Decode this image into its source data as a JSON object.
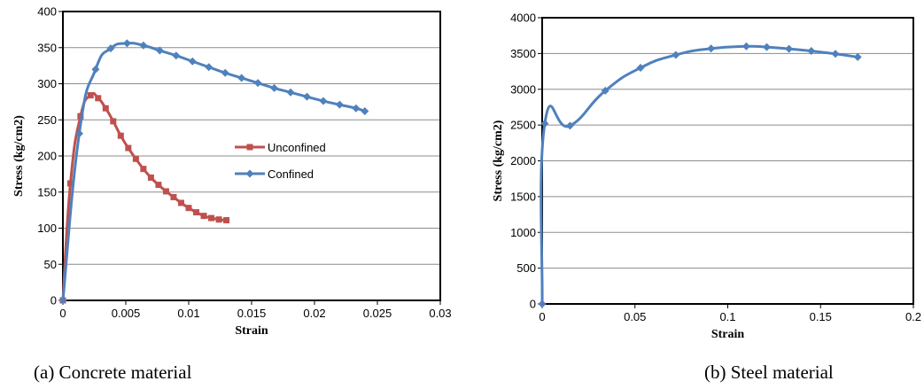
{
  "chart_data": [
    {
      "type": "line",
      "caption": "(a) Concrete material",
      "xlabel": "Strain",
      "ylabel": "Stress (kg/cm2)",
      "xlim": [
        0,
        0.03
      ],
      "ylim": [
        0,
        400
      ],
      "x_ticks": [
        0,
        0.005,
        0.01,
        0.015,
        0.02,
        0.025,
        0.03
      ],
      "x_tick_labels": [
        "0",
        "0.005",
        "0.01",
        "0.015",
        "0.02",
        "0.025",
        "0.03"
      ],
      "y_ticks": [
        0,
        50,
        100,
        150,
        200,
        250,
        300,
        350,
        400
      ],
      "y_tick_labels": [
        "0",
        "50",
        "100",
        "150",
        "200",
        "250",
        "300",
        "350",
        "400"
      ],
      "grid": "horizontal",
      "legend": "center-right",
      "series": [
        {
          "name": "Unconfined",
          "color": "#c0504d",
          "marker": "square",
          "x": [
            0,
            0.0006,
            0.0014,
            0.0022,
            0.0028,
            0.0034,
            0.004,
            0.0046,
            0.0052,
            0.0058,
            0.0064,
            0.007,
            0.0076,
            0.0082,
            0.0088,
            0.0094,
            0.01,
            0.0106,
            0.0112,
            0.0118,
            0.0124,
            0.013
          ],
          "y": [
            0,
            162,
            255,
            284,
            280,
            266,
            248,
            228,
            211,
            196,
            182,
            170,
            160,
            151,
            143,
            135,
            128,
            122,
            117,
            114,
            112,
            111
          ]
        },
        {
          "name": "Confined",
          "color": "#4f81bd",
          "marker": "diamond",
          "x": [
            0,
            0.0013,
            0.0026,
            0.0038,
            0.0051,
            0.0064,
            0.0077,
            0.009,
            0.0103,
            0.0116,
            0.0129,
            0.0142,
            0.0155,
            0.0168,
            0.0181,
            0.0194,
            0.0207,
            0.022,
            0.0233,
            0.024
          ],
          "y": [
            0,
            231,
            320,
            349,
            356,
            353,
            346,
            339,
            331,
            323,
            315,
            308,
            301,
            294,
            288,
            282,
            276,
            271,
            266,
            262
          ]
        }
      ]
    },
    {
      "type": "line",
      "caption": "(b) Steel material",
      "xlabel": "Strain",
      "ylabel": "Stress (kg/cm2)",
      "xlim": [
        0,
        0.2
      ],
      "ylim": [
        0,
        4000
      ],
      "x_ticks": [
        0,
        0.05,
        0.1,
        0.15,
        0.2
      ],
      "x_tick_labels": [
        "0",
        "0.05",
        "0.1",
        "0.15",
        "0.2"
      ],
      "y_ticks": [
        0,
        500,
        1000,
        1500,
        2000,
        2500,
        3000,
        3500,
        4000
      ],
      "y_tick_labels": [
        "0",
        "500",
        "1000",
        "1500",
        "2000",
        "2500",
        "3000",
        "3500",
        "4000"
      ],
      "grid": "horizontal",
      "legend": "none",
      "series": [
        {
          "color": "#4f81bd",
          "marker": "diamond",
          "x": [
            0,
            0.0014,
            0.015,
            0.034,
            0.053,
            0.072,
            0.091,
            0.11,
            0.121,
            0.133,
            0.145,
            0.158,
            0.17
          ],
          "y": [
            0,
            2520,
            2490,
            2980,
            3300,
            3480,
            3570,
            3600,
            3590,
            3565,
            3535,
            3495,
            3450
          ]
        }
      ]
    }
  ]
}
